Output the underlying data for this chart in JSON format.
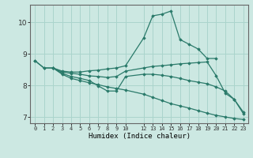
{
  "background_color": "#cce8e2",
  "grid_color": "#aad4cc",
  "line_color": "#2a7a6a",
  "xlabel": "Humidex (Indice chaleur)",
  "xlim": [
    -0.5,
    23.5
  ],
  "ylim": [
    6.8,
    10.55
  ],
  "xtick_positions": [
    0,
    1,
    2,
    3,
    4,
    5,
    6,
    7,
    8,
    9,
    10,
    12,
    13,
    14,
    15,
    16,
    17,
    18,
    19,
    20,
    21,
    22,
    23
  ],
  "xtick_labels": [
    "0",
    "1",
    "2",
    "3",
    "4",
    "5",
    "6",
    "7",
    "8",
    "9",
    "10",
    "12",
    "13",
    "14",
    "15",
    "16",
    "17",
    "18",
    "19",
    "20",
    "21",
    "22",
    "23"
  ],
  "yticks": [
    7,
    8,
    9,
    10
  ],
  "series": [
    {
      "x": [
        0,
        1,
        2,
        3,
        4,
        5,
        6,
        7,
        8,
        9,
        10,
        12,
        13,
        14,
        15,
        16,
        17,
        18,
        19,
        20
      ],
      "y": [
        8.78,
        8.55,
        8.55,
        8.45,
        8.42,
        8.42,
        8.46,
        8.48,
        8.52,
        8.55,
        8.62,
        9.5,
        10.2,
        10.25,
        10.35,
        9.45,
        9.3,
        9.15,
        8.85,
        8.85
      ]
    },
    {
      "x": [
        0,
        1,
        2,
        3,
        4,
        5,
        6,
        7,
        8,
        9,
        10,
        12,
        13,
        14,
        15,
        16,
        17,
        18,
        19,
        20,
        21,
        22,
        23
      ],
      "y": [
        8.78,
        8.55,
        8.55,
        8.42,
        8.38,
        8.35,
        8.3,
        8.28,
        8.25,
        8.28,
        8.45,
        8.55,
        8.6,
        8.62,
        8.65,
        8.68,
        8.7,
        8.72,
        8.74,
        8.3,
        7.75,
        7.55,
        7.15
      ]
    },
    {
      "x": [
        2,
        3,
        4,
        5,
        6,
        7,
        8,
        9,
        10,
        12,
        13,
        14,
        15,
        16,
        17,
        18,
        19,
        20,
        21,
        22,
        23
      ],
      "y": [
        8.55,
        8.38,
        8.28,
        8.22,
        8.15,
        7.98,
        7.82,
        7.82,
        8.28,
        8.35,
        8.35,
        8.32,
        8.28,
        8.22,
        8.15,
        8.1,
        8.05,
        7.95,
        7.82,
        7.55,
        7.1
      ]
    },
    {
      "x": [
        2,
        3,
        4,
        5,
        6,
        7,
        8,
        9,
        10,
        12,
        13,
        14,
        15,
        16,
        17,
        18,
        19,
        20,
        21,
        22,
        23
      ],
      "y": [
        8.55,
        8.35,
        8.22,
        8.15,
        8.08,
        8.02,
        7.95,
        7.9,
        7.85,
        7.72,
        7.62,
        7.52,
        7.42,
        7.35,
        7.28,
        7.2,
        7.12,
        7.05,
        7.0,
        6.95,
        6.92
      ]
    }
  ]
}
